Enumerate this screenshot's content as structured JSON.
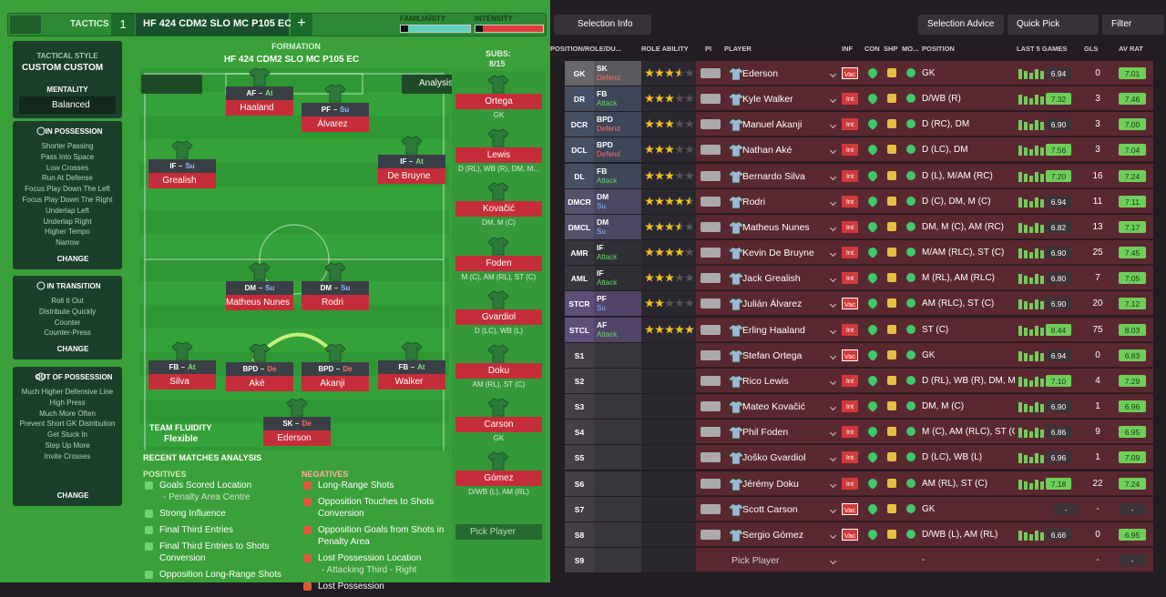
{
  "topbar": {
    "tab": "TACTICS",
    "slot": "1",
    "tactic": "HF 424 CDM2 SLO MC P105 EC",
    "add": "+",
    "familiarity": "FAMILIARITY",
    "intensity": "INTENSITY"
  },
  "sidebar": {
    "style_label": "TACTICAL STYLE",
    "style": "CUSTOM CUSTOM",
    "mentality_label": "MENTALITY",
    "mentality": "Balanced",
    "sections": [
      {
        "title": "IN POSSESSION",
        "items": [
          "Shorter Passing",
          "Pass Into Space",
          "Low Crosses",
          "Run At Defense",
          "Focus Play Down The Left",
          "Focus Play Down The Right",
          "Underlap Left",
          "Underlap Right",
          "Higher Tempo",
          "Narrow"
        ],
        "action": "CHANGE"
      },
      {
        "title": "IN TRANSITION",
        "items": [
          "Roll It Out",
          "Distribute Quickly",
          "Counter",
          "Counter-Press"
        ],
        "action": "CHANGE"
      },
      {
        "title": "OUT OF POSSESSION",
        "items": [
          "Much Higher Defensive Line",
          "High Press",
          "Much More Often",
          "Prevent Short GK Distribution",
          "Get Stuck In",
          "Step Up More",
          "Invite Crosses"
        ],
        "action": "CHANGE"
      }
    ]
  },
  "formation": {
    "label": "FORMATION",
    "name": "HF 424 CDM2 SLO MC P105 EC",
    "analysis": "Analysis",
    "fluidity_label": "TEAM FLUIDITY",
    "fluidity": "Flexible",
    "players": [
      {
        "role": "AF",
        "duty": "At",
        "name": "Haaland"
      },
      {
        "role": "PF",
        "duty": "Su",
        "name": "Álvarez"
      },
      {
        "role": "IF",
        "duty": "Su",
        "name": "Grealish"
      },
      {
        "role": "IF",
        "duty": "At",
        "name": "De Bruyne"
      },
      {
        "role": "DM",
        "duty": "Su",
        "name": "Matheus Nunes"
      },
      {
        "role": "DM",
        "duty": "Su",
        "name": "Rodri"
      },
      {
        "role": "FB",
        "duty": "At",
        "name": "Silva"
      },
      {
        "role": "BPD",
        "duty": "De",
        "name": "Aké"
      },
      {
        "role": "BPD",
        "duty": "De",
        "name": "Akanji"
      },
      {
        "role": "FB",
        "duty": "At",
        "name": "Walker"
      },
      {
        "role": "SK",
        "duty": "De",
        "name": "Ederson"
      }
    ]
  },
  "subs": {
    "label": "SUBS:",
    "count": "8/15",
    "players": [
      {
        "name": "Ortega",
        "positions": "GK"
      },
      {
        "name": "Lewis",
        "positions": "D (RL), WB (R), DM, M..."
      },
      {
        "name": "Kovačić",
        "positions": "DM, M (C)"
      },
      {
        "name": "Foden",
        "positions": "M (C), AM (RL), ST (C)"
      },
      {
        "name": "Gvardiol",
        "positions": "D (LC), WB (L)"
      },
      {
        "name": "Doku",
        "positions": "AM (RL), ST (C)"
      },
      {
        "name": "Carson",
        "positions": "GK"
      },
      {
        "name": "Gómez",
        "positions": "D/WB (L), AM (RL)"
      }
    ],
    "pick": "Pick Player"
  },
  "analysis": {
    "title": "RECENT MATCHES ANALYSIS",
    "positives_label": "POSITIVES",
    "positives": [
      {
        "text": "Goals Scored Location",
        "detail": "- Penalty Area Centre"
      },
      {
        "text": "Strong Influence"
      },
      {
        "text": "Final Third Entries"
      },
      {
        "text": "Final Third Entries to Shots Conversion"
      },
      {
        "text": "Opposition Long-Range Shots"
      }
    ],
    "negatives_label": "NEGATIVES",
    "negatives": [
      {
        "text": "Long-Range Shots"
      },
      {
        "text": "Opposition Touches to Shots Conversion"
      },
      {
        "text": "Opposition Goals from Shots in Penalty Area"
      },
      {
        "text": "Lost Possession Location",
        "detail": "- Attacking Third - Right"
      },
      {
        "text": "Lost Possession"
      }
    ]
  },
  "toolbar": {
    "selection_info": "Selection Info",
    "selection_advice": "Selection Advice",
    "quick_pick": "Quick Pick",
    "filter": "Filter"
  },
  "table": {
    "columns": [
      "POSITION/ROLE/DU...",
      "ROLE ABILITY",
      "PI",
      "PLAYER",
      "INF",
      "CON",
      "SHP",
      "MO...",
      "POSITION",
      "LAST 5 GAMES",
      "GLS",
      "AV RAT"
    ],
    "rows": [
      {
        "pos": "GK",
        "role": "SK",
        "duty": "Defend",
        "stars": 3.5,
        "name": "Ederson",
        "inf": "Vac",
        "position": "GK",
        "last": "6.94",
        "gls": "0",
        "avrat": "7.01"
      },
      {
        "pos": "DR",
        "role": "FB",
        "duty": "Attack",
        "stars": 3,
        "name": "Kyle Walker",
        "inf": "Int",
        "position": "D/WB (R)",
        "last": "7.32",
        "gls": "3",
        "avrat": "7.46"
      },
      {
        "pos": "DCR",
        "role": "BPD",
        "duty": "Defend",
        "stars": 3,
        "name": "Manuel Akanji",
        "inf": "Int",
        "position": "D (RC), DM",
        "last": "6.90",
        "gls": "3",
        "avrat": "7.00"
      },
      {
        "pos": "DCL",
        "role": "BPD",
        "duty": "Defend",
        "stars": 3,
        "name": "Nathan Aké",
        "inf": "Int",
        "position": "D (LC), DM",
        "last": "7.56",
        "gls": "3",
        "avrat": "7.04"
      },
      {
        "pos": "DL",
        "role": "FB",
        "duty": "Attack",
        "stars": 3,
        "name": "Bernardo Silva",
        "inf": "Int",
        "position": "D (L), M/AM (RC)",
        "last": "7.20",
        "gls": "16",
        "avrat": "7.24"
      },
      {
        "pos": "DMCR",
        "role": "DM",
        "duty": "Su",
        "stars": 4.5,
        "name": "Rodri",
        "inf": "Int",
        "position": "D (C), DM, M (C)",
        "last": "6.94",
        "gls": "11",
        "avrat": "7.11"
      },
      {
        "pos": "DMCL",
        "role": "DM",
        "duty": "Su",
        "stars": 3.5,
        "name": "Matheus Nunes",
        "inf": "Int",
        "position": "DM, M (C), AM (RC)",
        "last": "6.82",
        "gls": "13",
        "avrat": "7.17"
      },
      {
        "pos": "AMR",
        "role": "IF",
        "duty": "Attack",
        "stars": 4,
        "name": "Kevin De Bruyne",
        "inf": "Int",
        "position": "M/AM (RLC), ST (C)",
        "last": "6.90",
        "gls": "25",
        "avrat": "7.45"
      },
      {
        "pos": "AML",
        "role": "IF",
        "duty": "Attack",
        "stars": 3,
        "name": "Jack Grealish",
        "inf": "Int",
        "position": "M (RL), AM (RLC)",
        "last": "6.80",
        "gls": "7",
        "avrat": "7.05"
      },
      {
        "pos": "STCR",
        "role": "PF",
        "duty": "Su",
        "stars": 2,
        "name": "Julián Álvarez",
        "inf": "Vac",
        "position": "AM (RLC), ST (C)",
        "last": "6.90",
        "gls": "20",
        "avrat": "7.12"
      },
      {
        "pos": "STCL",
        "role": "AF",
        "duty": "Attack",
        "stars": 5,
        "name": "Erling Haaland",
        "inf": "Int",
        "position": "ST (C)",
        "last": "8.44",
        "gls": "75",
        "avrat": "8.03"
      },
      {
        "pos": "S1",
        "name": "Stefan Ortega",
        "inf": "Vac",
        "position": "GK",
        "last": "6.94",
        "gls": "0",
        "avrat": "6.83"
      },
      {
        "pos": "S2",
        "name": "Rico Lewis",
        "inf": "Int",
        "position": "D (RL), WB (R), DM, M...",
        "last": "7.10",
        "gls": "4",
        "avrat": "7.29"
      },
      {
        "pos": "S3",
        "name": "Mateo Kovačić",
        "inf": "Int",
        "position": "DM, M (C)",
        "last": "6.90",
        "gls": "1",
        "avrat": "6.96"
      },
      {
        "pos": "S4",
        "name": "Phil Foden",
        "inf": "Int",
        "position": "M (C), AM (RLC), ST (C)",
        "last": "6.86",
        "gls": "9",
        "avrat": "6.95"
      },
      {
        "pos": "S5",
        "name": "Joško Gvardiol",
        "inf": "Int",
        "position": "D (LC), WB (L)",
        "last": "6.96",
        "gls": "1",
        "avrat": "7.09"
      },
      {
        "pos": "S6",
        "name": "Jérémy Doku",
        "inf": "Int",
        "position": "AM (RL), ST (C)",
        "last": "7.18",
        "gls": "22",
        "avrat": "7.24"
      },
      {
        "pos": "S7",
        "name": "Scott Carson",
        "inf": "Vac",
        "position": "GK",
        "last": "-",
        "gls": "-",
        "avrat": "-"
      },
      {
        "pos": "S8",
        "name": "Sergio Gómez",
        "inf": "Vac",
        "position": "D/WB (L), AM (RL)",
        "last": "6.66",
        "gls": "0",
        "avrat": "6.95"
      },
      {
        "pos": "S9",
        "name": "Pick Player",
        "position": "-",
        "gls": "-",
        "avrat": "-"
      }
    ]
  }
}
